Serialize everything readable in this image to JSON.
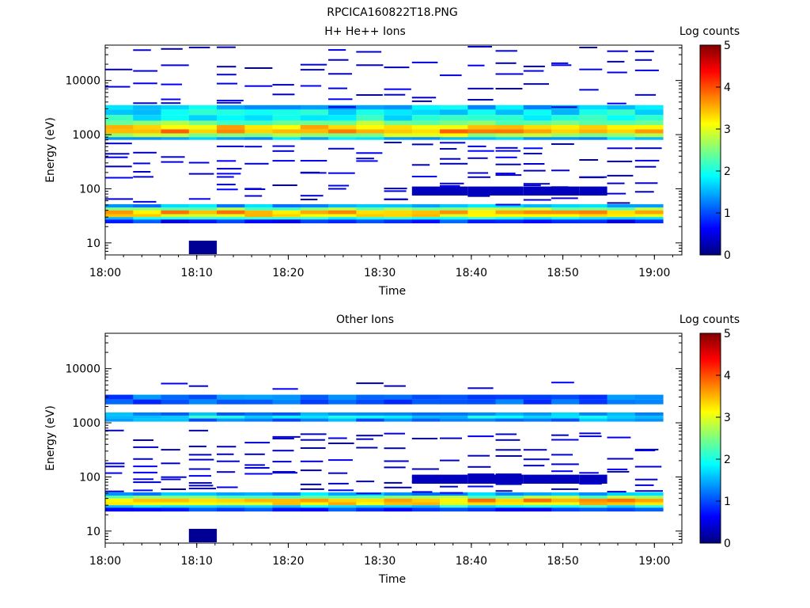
{
  "page_title": "RPCICA160822T18.PNG",
  "chart_data": [
    {
      "type": "heatmap",
      "title": "H+ He++ Ions",
      "xlabel": "Time",
      "ylabel": "Energy (eV)",
      "yscale": "log",
      "ylim": [
        6,
        45000
      ],
      "xlim": [
        "18:00",
        "19:03"
      ],
      "x_ticks": [
        "18:00",
        "18:10",
        "18:20",
        "18:30",
        "18:40",
        "18:50",
        "19:00"
      ],
      "y_ticks": [
        "10",
        "100",
        "1000",
        "10000"
      ],
      "colorbar": {
        "label": "Log counts",
        "min": 0,
        "max": 5,
        "ticks": [
          "0",
          "1",
          "2",
          "3",
          "4",
          "5"
        ]
      },
      "bands": [
        {
          "e_lo": 2900,
          "e_hi": 3500,
          "level": 1.6
        },
        {
          "e_lo": 2300,
          "e_hi": 2900,
          "level": 1.8
        },
        {
          "e_lo": 1800,
          "e_hi": 2300,
          "level": 2.0
        },
        {
          "e_lo": 1500,
          "e_hi": 1800,
          "level": 2.5
        },
        {
          "e_lo": 1250,
          "e_hi": 1500,
          "level": 3.3
        },
        {
          "e_lo": 1050,
          "e_hi": 1250,
          "level": 3.6
        },
        {
          "e_lo": 900,
          "e_hi": 1050,
          "level": 2.8
        },
        {
          "e_lo": 800,
          "e_hi": 900,
          "level": 1.6
        },
        {
          "e_lo": 45,
          "e_hi": 52,
          "level": 1.5
        },
        {
          "e_lo": 40,
          "e_hi": 45,
          "level": 2.5
        },
        {
          "e_lo": 34,
          "e_hi": 40,
          "level": 3.5
        },
        {
          "e_lo": 30,
          "e_hi": 34,
          "level": 3.2
        },
        {
          "e_lo": 27,
          "e_hi": 30,
          "level": 1.8
        },
        {
          "e_lo": 23,
          "e_hi": 27,
          "level": 0.8
        }
      ],
      "sparse_energies": [
        38000,
        22000,
        19000,
        15000,
        8000,
        5000,
        3800,
        650,
        520,
        380,
        300,
        230,
        190,
        150,
        120,
        90,
        75,
        60
      ]
    },
    {
      "type": "heatmap",
      "title": "Other Ions",
      "xlabel": "Time",
      "ylabel": "Energy (eV)",
      "yscale": "log",
      "ylim": [
        6,
        45000
      ],
      "xlim": [
        "18:00",
        "19:03"
      ],
      "x_ticks": [
        "18:00",
        "18:10",
        "18:20",
        "18:30",
        "18:40",
        "18:50",
        "19:00"
      ],
      "y_ticks": [
        "10",
        "100",
        "1000",
        "10000"
      ],
      "colorbar": {
        "label": "Log counts",
        "min": 0,
        "max": 5,
        "ticks": [
          "0",
          "1",
          "2",
          "3",
          "4",
          "5"
        ]
      },
      "bands": [
        {
          "e_lo": 2700,
          "e_hi": 3300,
          "level": 1.2
        },
        {
          "e_lo": 2200,
          "e_hi": 2700,
          "level": 1.0
        },
        {
          "e_lo": 1350,
          "e_hi": 1550,
          "level": 1.4
        },
        {
          "e_lo": 1200,
          "e_hi": 1350,
          "level": 1.8
        },
        {
          "e_lo": 1050,
          "e_hi": 1200,
          "level": 1.3
        },
        {
          "e_lo": 45,
          "e_hi": 52,
          "level": 1.5
        },
        {
          "e_lo": 40,
          "e_hi": 45,
          "level": 2.5
        },
        {
          "e_lo": 34,
          "e_hi": 40,
          "level": 3.5
        },
        {
          "e_lo": 30,
          "e_hi": 34,
          "level": 3.2
        },
        {
          "e_lo": 27,
          "e_hi": 30,
          "level": 1.8
        },
        {
          "e_lo": 23,
          "e_hi": 27,
          "level": 0.8
        }
      ],
      "sparse_energies": [
        5000,
        650,
        520,
        380,
        300,
        230,
        190,
        150,
        120,
        90,
        75,
        60
      ]
    }
  ]
}
